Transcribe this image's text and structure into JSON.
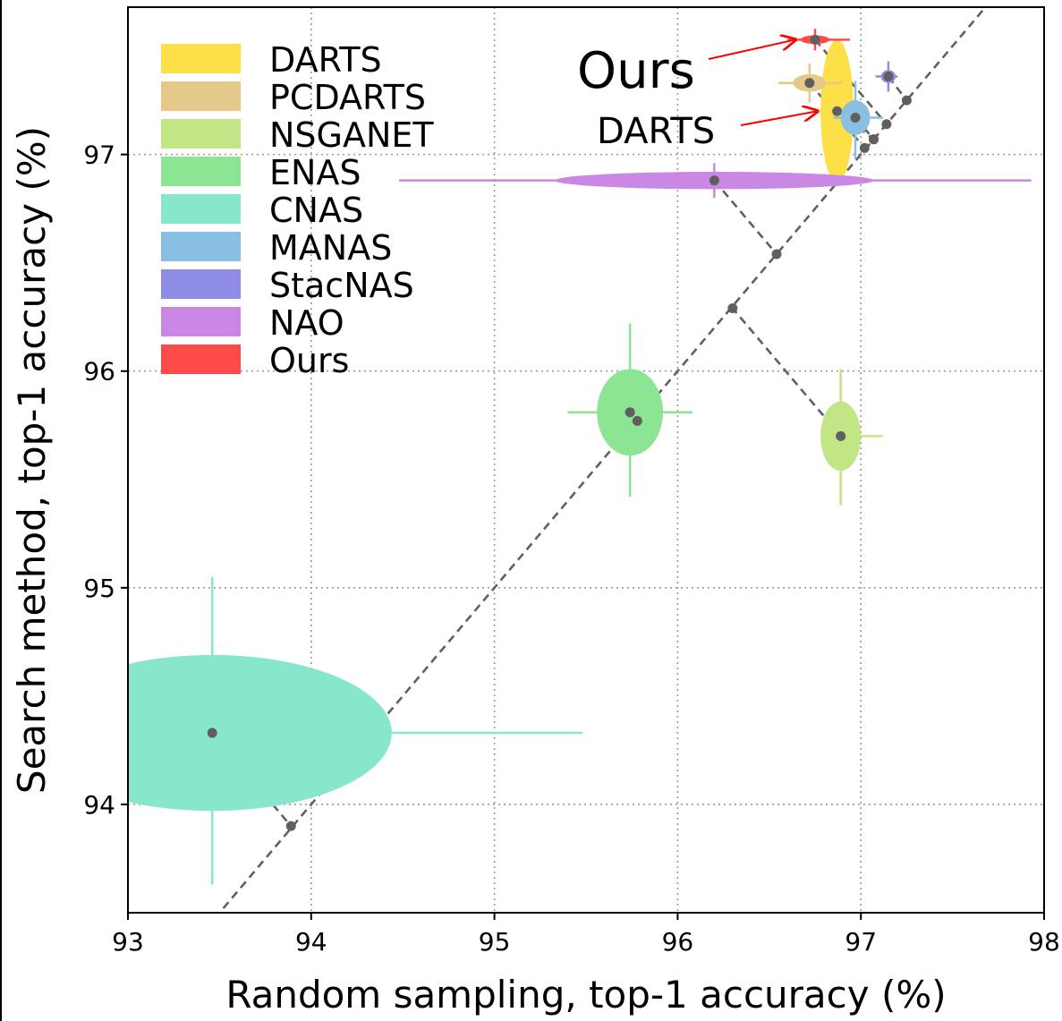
{
  "chart_data": {
    "type": "scatter",
    "xlabel": "Random sampling, top-1 accuracy (%)",
    "ylabel": "Search method, top-1 accuracy (%)",
    "xlim": [
      93,
      98
    ],
    "ylim": [
      93.5,
      97.68
    ],
    "x_ticks": [
      93,
      94,
      95,
      96,
      97,
      98
    ],
    "y_ticks": [
      94,
      95,
      96,
      97
    ],
    "grid": true,
    "grid_style": "dotted",
    "legend_position": "upper-left",
    "diagonal": {
      "style": "dashed",
      "color": "#606060"
    },
    "series": [
      {
        "name": "DARTS",
        "color": "#FDE047",
        "x": 96.87,
        "y": 97.2,
        "x_std": 0.09,
        "y_std": 0.33,
        "x_range": [
          96.77,
          96.97
        ],
        "y_range": [
          96.87,
          97.4
        ]
      },
      {
        "name": "PCDARTS",
        "color": "#E5C98A",
        "x": 96.72,
        "y": 97.33,
        "x_std": 0.09,
        "y_std": 0.04,
        "x_range": [
          96.55,
          96.9
        ],
        "y_range": [
          97.24,
          97.42
        ]
      },
      {
        "name": "NSGANET",
        "color": "#C2E685",
        "x": 96.89,
        "y": 95.7,
        "x_std": 0.11,
        "y_std": 0.16,
        "x_range": [
          96.78,
          97.12
        ],
        "y_range": [
          95.38,
          96.01
        ]
      },
      {
        "name": "ENAS",
        "color": "#8CE592",
        "x": 95.74,
        "y": 95.81,
        "x_std": 0.18,
        "y_std": 0.2,
        "x_range": [
          95.4,
          96.08
        ],
        "y_range": [
          95.42,
          96.22
        ]
      },
      {
        "name": "CNAS",
        "color": "#88E6CC",
        "x": 93.46,
        "y": 94.33,
        "x_std": 0.98,
        "y_std": 0.36,
        "x_range": [
          93.0,
          95.48
        ],
        "y_range": [
          93.63,
          95.05
        ]
      },
      {
        "name": "MANAS",
        "color": "#88BFE2",
        "x": 96.97,
        "y": 97.17,
        "x_std": 0.08,
        "y_std": 0.08,
        "x_range": [
          96.85,
          97.12
        ],
        "y_range": [
          96.98,
          97.34
        ]
      },
      {
        "name": "StacNAS",
        "color": "#8E8CE4",
        "x": 97.15,
        "y": 97.36,
        "x_std": 0.04,
        "y_std": 0.03,
        "x_range": [
          97.08,
          97.2
        ],
        "y_range": [
          97.29,
          97.43
        ]
      },
      {
        "name": "NAO",
        "color": "#CB87E4",
        "x": 96.2,
        "y": 96.88,
        "x_std": 0.87,
        "y_std": 0.04,
        "x_range": [
          94.48,
          97.93
        ],
        "y_range": [
          96.8,
          96.96
        ]
      },
      {
        "name": "Ours",
        "color": "#FF4A4A",
        "x": 96.75,
        "y": 97.53,
        "x_std": 0.08,
        "y_std": 0.02,
        "x_range": [
          96.6,
          96.94
        ],
        "y_range": [
          97.48,
          97.58
        ]
      }
    ],
    "projections": [
      {
        "from": [
          93.46,
          94.33
        ],
        "to": [
          93.89,
          93.9
        ]
      },
      {
        "from": [
          95.74,
          95.81
        ],
        "to": [
          95.78,
          95.77
        ]
      },
      {
        "from": [
          96.89,
          95.7
        ],
        "to": [
          96.3,
          96.29
        ]
      },
      {
        "from": [
          96.2,
          96.88
        ],
        "to": [
          96.54,
          96.54
        ]
      },
      {
        "from": [
          96.72,
          97.33
        ],
        "to": [
          97.02,
          97.03
        ]
      },
      {
        "from": [
          96.87,
          97.2
        ],
        "to": [
          97.07,
          97.07
        ]
      },
      {
        "from": [
          96.97,
          97.17
        ],
        "to": [
          97.07,
          97.07
        ]
      },
      {
        "from": [
          97.15,
          97.36
        ],
        "to": [
          97.25,
          97.25
        ]
      },
      {
        "from": [
          96.75,
          97.53
        ],
        "to": [
          97.14,
          97.14
        ]
      }
    ],
    "annotations": [
      {
        "text": "Ours",
        "target": "Ours",
        "size": "large"
      },
      {
        "text": "DARTS",
        "target": "DARTS",
        "size": "small"
      }
    ]
  }
}
